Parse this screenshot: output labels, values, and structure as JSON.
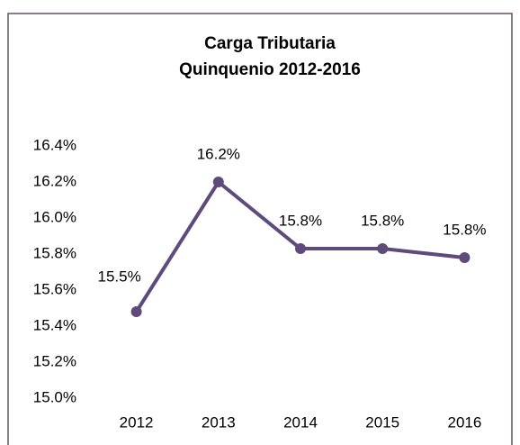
{
  "chart_data": {
    "type": "line",
    "title": "Carga Tributaria",
    "subtitle": "Quinquenio 2012-2016",
    "categories": [
      "2012",
      "2013",
      "2014",
      "2015",
      "2016"
    ],
    "values": [
      15.48,
      16.2,
      15.83,
      15.83,
      15.78
    ],
    "value_labels": [
      "15.5%",
      "16.2%",
      "15.8%",
      "15.8%",
      "15.8%"
    ],
    "color": "#5f4b7b",
    "ylim": [
      15.0,
      16.4
    ],
    "yticks": [
      {
        "value": 15.0,
        "label": "15.0%"
      },
      {
        "value": 15.2,
        "label": "15.2%"
      },
      {
        "value": 15.4,
        "label": "15.4%"
      },
      {
        "value": 15.6,
        "label": "15.6%"
      },
      {
        "value": 15.8,
        "label": "15.8%"
      },
      {
        "value": 16.0,
        "label": "16.0%"
      },
      {
        "value": 16.2,
        "label": "16.2%"
      },
      {
        "value": 16.4,
        "label": "16.4%"
      }
    ],
    "grid": false
  }
}
